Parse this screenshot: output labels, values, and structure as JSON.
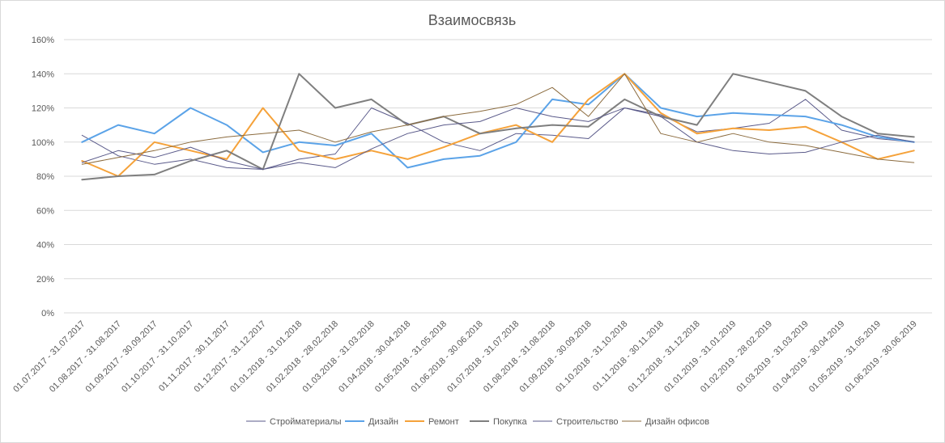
{
  "chart_data": {
    "type": "line",
    "title": "Взаимосвязь",
    "xlabel": "",
    "ylabel": "",
    "ylim": [
      0,
      160
    ],
    "yticks": [
      "0%",
      "20%",
      "40%",
      "60%",
      "80%",
      "100%",
      "120%",
      "140%",
      "160%"
    ],
    "grid": true,
    "legend": "bottom",
    "categories": [
      "01.07.2017 - 31.07.2017",
      "01.08.2017 - 31.08.2017",
      "01.09.2017 - 30.09.2017",
      "01.10.2017 - 31.10.2017",
      "01.11.2017 - 30.11.2017",
      "01.12.2017 - 31.12.2017",
      "01.01.2018 - 31.01.2018",
      "01.02.2018 - 28.02.2018",
      "01.03.2018 - 31.03.2018",
      "01.04.2018 - 30.04.2018",
      "01.05.2018 - 31.05.2018",
      "01.06.2018 - 30.06.2018",
      "01.07.2018 - 31.07.2018",
      "01.08.2018 - 31.08.2018",
      "01.09.2018 - 30.09.2018",
      "01.10.2018 - 31.10.2018",
      "01.11.2018 - 30.11.2018",
      "01.12.2018 - 31.12.2018",
      "01.01.2019 - 31.01.2019",
      "01.02.2019 - 28.02.2019",
      "01.03.2019 - 31.03.2019",
      "01.04.2019 - 30.04.2019",
      "01.05.2019 - 31.05.2019",
      "01.06.2019 - 30.06.2019"
    ],
    "series": [
      {
        "name": "Стройматериалы",
        "color": "#5a5a8a",
        "width": 1,
        "values": [
          104,
          92,
          87,
          90,
          85,
          84,
          90,
          93,
          120,
          111,
          100,
          95,
          105,
          104,
          102,
          120,
          116,
          106,
          108,
          111,
          125,
          107,
          102,
          100
        ]
      },
      {
        "name": "Дизайн",
        "color": "#5ba3e8",
        "width": 2,
        "values": [
          100,
          110,
          105,
          120,
          110,
          94,
          100,
          98,
          105,
          85,
          90,
          92,
          100,
          125,
          122,
          140,
          120,
          115,
          117,
          116,
          115,
          110,
          103,
          100
        ]
      },
      {
        "name": "Ремонт",
        "color": "#f5a23a",
        "width": 2,
        "values": [
          89,
          80,
          100,
          95,
          90,
          120,
          95,
          90,
          95,
          90,
          97,
          105,
          110,
          100,
          125,
          140,
          117,
          105,
          108,
          107,
          109,
          100,
          90,
          95
        ]
      },
      {
        "name": "Покупка",
        "color": "#7f7f7f",
        "width": 2,
        "values": [
          78,
          80,
          81,
          89,
          95,
          84,
          140,
          120,
          125,
          110,
          115,
          105,
          108,
          110,
          109,
          125,
          115,
          110,
          140,
          135,
          130,
          115,
          105,
          103
        ]
      },
      {
        "name": "Строительство",
        "color": "#5a5a8a",
        "width": 1,
        "values": [
          88,
          95,
          91,
          97,
          89,
          84,
          88,
          85,
          96,
          105,
          110,
          112,
          120,
          115,
          112,
          120,
          115,
          100,
          95,
          93,
          94,
          100,
          104,
          100
        ]
      },
      {
        "name": "Дизайн офисов",
        "color": "#8b6b3e",
        "width": 1,
        "values": [
          87,
          91,
          95,
          100,
          103,
          105,
          107,
          100,
          106,
          110,
          115,
          118,
          122,
          132,
          115,
          140,
          105,
          100,
          105,
          100,
          98,
          94,
          90,
          88
        ]
      }
    ]
  }
}
